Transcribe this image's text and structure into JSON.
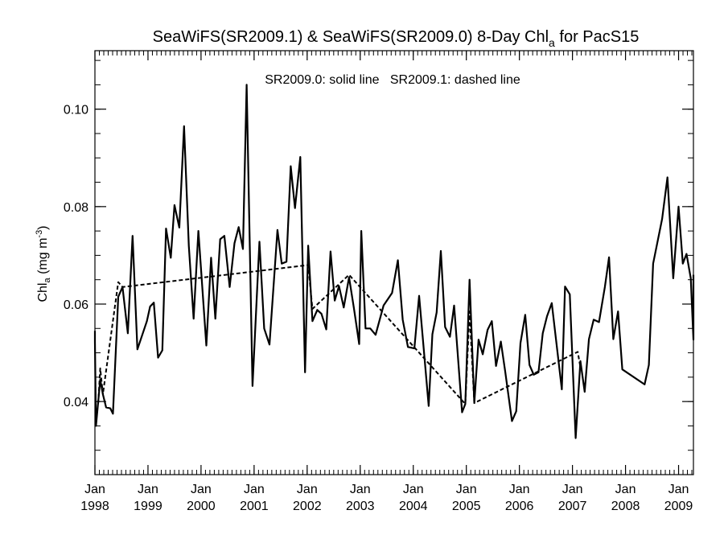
{
  "chart_data": {
    "type": "line",
    "title_parts": [
      "SeaWiFS(SR2009.1) & SeaWiFS(SR2009.0) 8-Day Chl",
      "a",
      " for PacS15"
    ],
    "ylabel_parts": [
      "Chl",
      "a",
      " (mg m",
      "-3",
      ")"
    ],
    "annotation": "SR2009.0: solid line   SR2009.1: dashed line",
    "xlim": [
      1998.0,
      2009.28
    ],
    "ylim": [
      0.025,
      0.112
    ],
    "x_ticks": [
      {
        "value": 1998,
        "month": "Jan",
        "year": "1998"
      },
      {
        "value": 1999,
        "month": "Jan",
        "year": "1999"
      },
      {
        "value": 2000,
        "month": "Jan",
        "year": "2000"
      },
      {
        "value": 2001,
        "month": "Jan",
        "year": "2001"
      },
      {
        "value": 2002,
        "month": "Jan",
        "year": "2002"
      },
      {
        "value": 2003,
        "month": "Jan",
        "year": "2003"
      },
      {
        "value": 2004,
        "month": "Jan",
        "year": "2004"
      },
      {
        "value": 2005,
        "month": "Jan",
        "year": "2005"
      },
      {
        "value": 2006,
        "month": "Jan",
        "year": "2006"
      },
      {
        "value": 2007,
        "month": "Jan",
        "year": "2007"
      },
      {
        "value": 2008,
        "month": "Jan",
        "year": "2008"
      },
      {
        "value": 2009,
        "month": "Jan",
        "year": "2009"
      }
    ],
    "y_ticks": [
      {
        "value": 0.04,
        "label": "0.04"
      },
      {
        "value": 0.06,
        "label": "0.06"
      },
      {
        "value": 0.08,
        "label": "0.08"
      },
      {
        "value": 0.1,
        "label": "0.10"
      }
    ],
    "series": [
      {
        "style": "solid",
        "points": [
          [
            1997.92,
            0.0545
          ],
          [
            1998.0,
            0.0523
          ],
          [
            1998.02,
            0.035
          ],
          [
            1998.1,
            0.0445
          ],
          [
            1998.15,
            0.0415
          ],
          [
            1998.21,
            0.0388
          ],
          [
            1998.29,
            0.0386
          ],
          [
            1998.34,
            0.0375
          ],
          [
            1998.44,
            0.0615
          ],
          [
            1998.52,
            0.0635
          ],
          [
            1998.62,
            0.054
          ],
          [
            1998.71,
            0.074
          ],
          [
            1998.8,
            0.0507
          ],
          [
            1998.98,
            0.0565
          ],
          [
            1999.04,
            0.0595
          ],
          [
            1999.11,
            0.0603
          ],
          [
            1999.19,
            0.049
          ],
          [
            1999.27,
            0.0505
          ],
          [
            1999.34,
            0.0755
          ],
          [
            1999.43,
            0.0695
          ],
          [
            1999.5,
            0.0803
          ],
          [
            1999.59,
            0.0757
          ],
          [
            1999.68,
            0.0965
          ],
          [
            1999.77,
            0.072
          ],
          [
            1999.86,
            0.057
          ],
          [
            1999.95,
            0.075
          ],
          [
            2000.1,
            0.0515
          ],
          [
            2000.19,
            0.0695
          ],
          [
            2000.27,
            0.057
          ],
          [
            2000.36,
            0.0733
          ],
          [
            2000.44,
            0.074
          ],
          [
            2000.54,
            0.0635
          ],
          [
            2000.63,
            0.0725
          ],
          [
            2000.71,
            0.0758
          ],
          [
            2000.79,
            0.0713
          ],
          [
            2000.86,
            0.105
          ],
          [
            2000.97,
            0.0432
          ],
          [
            2001.1,
            0.0728
          ],
          [
            2001.19,
            0.055
          ],
          [
            2001.29,
            0.0517
          ],
          [
            2001.44,
            0.0752
          ],
          [
            2001.52,
            0.0683
          ],
          [
            2001.61,
            0.0687
          ],
          [
            2001.69,
            0.0883
          ],
          [
            2001.77,
            0.0797
          ],
          [
            2001.87,
            0.0902
          ],
          [
            2001.96,
            0.046
          ],
          [
            2002.02,
            0.072
          ],
          [
            2002.1,
            0.0565
          ],
          [
            2002.19,
            0.0588
          ],
          [
            2002.27,
            0.058
          ],
          [
            2002.36,
            0.0548
          ],
          [
            2002.44,
            0.0708
          ],
          [
            2002.52,
            0.0607
          ],
          [
            2002.6,
            0.0637
          ],
          [
            2002.69,
            0.0593
          ],
          [
            2002.79,
            0.0655
          ],
          [
            2002.88,
            0.0592
          ],
          [
            2002.98,
            0.0518
          ],
          [
            2003.02,
            0.075
          ],
          [
            2003.1,
            0.055
          ],
          [
            2003.19,
            0.055
          ],
          [
            2003.29,
            0.0537
          ],
          [
            2003.44,
            0.0597
          ],
          [
            2003.6,
            0.0623
          ],
          [
            2003.71,
            0.069
          ],
          [
            2003.8,
            0.0568
          ],
          [
            2003.9,
            0.0512
          ],
          [
            2004.02,
            0.0509
          ],
          [
            2004.11,
            0.0617
          ],
          [
            2004.29,
            0.0391
          ],
          [
            2004.36,
            0.0538
          ],
          [
            2004.44,
            0.0583
          ],
          [
            2004.52,
            0.0709
          ],
          [
            2004.6,
            0.0553
          ],
          [
            2004.69,
            0.0533
          ],
          [
            2004.77,
            0.0597
          ],
          [
            2004.92,
            0.0378
          ],
          [
            2004.98,
            0.0395
          ],
          [
            2005.06,
            0.065
          ],
          [
            2005.15,
            0.0397
          ],
          [
            2005.23,
            0.0527
          ],
          [
            2005.31,
            0.0497
          ],
          [
            2005.4,
            0.0547
          ],
          [
            2005.48,
            0.0565
          ],
          [
            2005.56,
            0.0473
          ],
          [
            2005.65,
            0.0523
          ],
          [
            2005.73,
            0.0463
          ],
          [
            2005.86,
            0.036
          ],
          [
            2005.94,
            0.038
          ],
          [
            2006.02,
            0.052
          ],
          [
            2006.11,
            0.0578
          ],
          [
            2006.19,
            0.0475
          ],
          [
            2006.27,
            0.0455
          ],
          [
            2006.36,
            0.046
          ],
          [
            2006.44,
            0.054
          ],
          [
            2006.52,
            0.0575
          ],
          [
            2006.61,
            0.0602
          ],
          [
            2006.69,
            0.0527
          ],
          [
            2006.8,
            0.0425
          ],
          [
            2006.86,
            0.0636
          ],
          [
            2006.95,
            0.062
          ],
          [
            2007.06,
            0.0325
          ],
          [
            2007.15,
            0.0483
          ],
          [
            2007.23,
            0.042
          ],
          [
            2007.31,
            0.0528
          ],
          [
            2007.4,
            0.0568
          ],
          [
            2007.5,
            0.0563
          ],
          [
            2007.61,
            0.0635
          ],
          [
            2007.69,
            0.0696
          ],
          [
            2007.77,
            0.0528
          ],
          [
            2007.86,
            0.0585
          ],
          [
            2007.94,
            0.0466
          ],
          [
            2008.36,
            0.0435
          ],
          [
            2008.44,
            0.0475
          ],
          [
            2008.52,
            0.0683
          ],
          [
            2008.69,
            0.0775
          ],
          [
            2008.79,
            0.086
          ],
          [
            2008.9,
            0.0653
          ],
          [
            2009.0,
            0.08
          ],
          [
            2009.08,
            0.0683
          ],
          [
            2009.15,
            0.0703
          ],
          [
            2009.23,
            0.0653
          ],
          [
            2009.31,
            0.0527
          ],
          [
            2009.4,
            0.066
          ]
        ]
      },
      {
        "style": "dashed",
        "points": [
          [
            1998.06,
            0.0395
          ],
          [
            1998.1,
            0.0468
          ],
          [
            1998.15,
            0.0415
          ],
          [
            1998.44,
            0.0645
          ],
          [
            1998.52,
            0.0635
          ],
          [
            2002.02,
            0.068
          ],
          [
            2002.1,
            0.059
          ],
          [
            2002.79,
            0.066
          ],
          [
            2004.98,
            0.0395
          ],
          [
            2005.06,
            0.0585
          ],
          [
            2005.15,
            0.0397
          ],
          [
            2007.1,
            0.0502
          ],
          [
            2007.15,
            0.047
          ]
        ]
      }
    ]
  }
}
